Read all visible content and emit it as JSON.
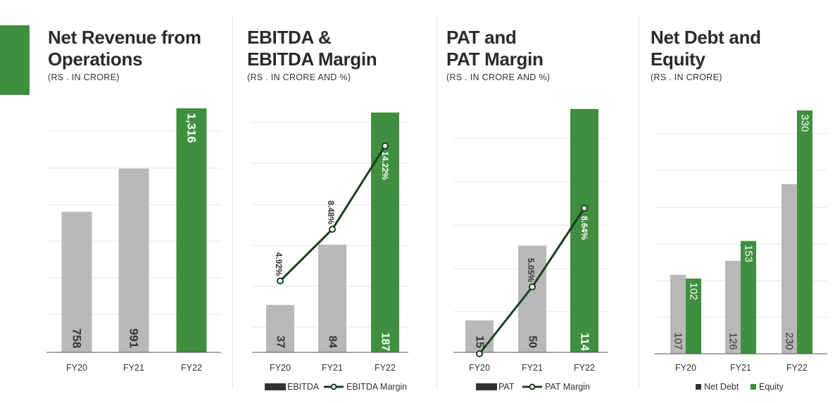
{
  "panels": [
    {
      "title_line1": "Net Revenue from",
      "title_line2": "Operations",
      "subtitle": "(RS . IN CRORE)"
    },
    {
      "title_line1": "EBITDA &",
      "title_line2": "EBITDA Margin",
      "subtitle": "(RS . IN CRORE AND %)"
    },
    {
      "title_line1": "PAT and",
      "title_line2": "PAT Margin",
      "subtitle": "(RS . IN CRORE AND %)"
    },
    {
      "title_line1": "Net Debt and",
      "title_line2": "Equity",
      "subtitle": "(RS . IN CRORE)"
    }
  ],
  "colors": {
    "green": "#3f8f3f",
    "grey": "#b8b8b8",
    "line": "#1a3d24",
    "grid": "#e6e6e6",
    "axis": "#555555",
    "accent": "#3f8f3f"
  },
  "chart_data": [
    {
      "type": "bar",
      "title": "Net Revenue from Operations",
      "subtitle": "(RS . IN CRORE)",
      "categories": [
        "FY20",
        "FY21",
        "FY22"
      ],
      "series": [
        {
          "values": [
            758,
            991,
            1316
          ],
          "labels": [
            "758",
            "991",
            "1,316"
          ]
        }
      ],
      "highlight_index": 2,
      "ylim": [
        0,
        1316
      ],
      "grid": true,
      "legend": []
    },
    {
      "type": "bar+line",
      "title": "EBITDA & EBITDA Margin",
      "subtitle": "(RS . IN CRORE AND %)",
      "categories": [
        "FY20",
        "FY21",
        "FY22"
      ],
      "series": [
        {
          "name": "EBITDA",
          "type": "bar",
          "values": [
            37,
            84,
            187
          ],
          "labels": [
            "37",
            "84",
            "187"
          ]
        },
        {
          "name": "EBITDA Margin",
          "type": "line",
          "values": [
            4.92,
            8.48,
            14.22
          ],
          "labels": [
            "4.92%",
            "8.48%",
            "14.22%"
          ]
        }
      ],
      "highlight_index": 2,
      "ylim": [
        0,
        187
      ],
      "y2lim": [
        0,
        15.7
      ],
      "grid": true,
      "legend": [
        "EBITDA",
        "EBITDA Margin"
      ],
      "legend_position": "bottom"
    },
    {
      "type": "bar+line",
      "title": "PAT and PAT Margin",
      "subtitle": "(RS . IN CRORE AND %)",
      "categories": [
        "FY20",
        "FY21",
        "FY22"
      ],
      "series": [
        {
          "name": "PAT",
          "type": "bar",
          "values": [
            15,
            50,
            114
          ],
          "labels": [
            "15",
            "50",
            "114"
          ]
        },
        {
          "name": "PAT Margin",
          "type": "line",
          "values": [
            2.0,
            5.05,
            8.64
          ],
          "labels": [
            "",
            "5.05%",
            "8.64%"
          ]
        }
      ],
      "highlight_index": 2,
      "ylim": [
        0,
        114
      ],
      "y2lim": [
        2.0,
        10.5
      ],
      "grid": true,
      "legend": [
        "PAT",
        "PAT Margin"
      ],
      "legend_position": "bottom"
    },
    {
      "type": "grouped-bar",
      "title": "Net Debt and Equity",
      "subtitle": "(RS . IN CRORE)",
      "categories": [
        "FY20",
        "FY21",
        "FY22"
      ],
      "series": [
        {
          "name": "Net Debt",
          "values": [
            107,
            126,
            230
          ],
          "labels": [
            "107",
            "126",
            "230"
          ]
        },
        {
          "name": "Equity",
          "values": [
            102,
            153,
            330
          ],
          "labels": [
            "102",
            "153",
            "330"
          ]
        }
      ],
      "ylim": [
        0,
        330
      ],
      "grid": true,
      "legend": [
        "Net Debt",
        "Equity"
      ],
      "legend_position": "bottom"
    }
  ]
}
